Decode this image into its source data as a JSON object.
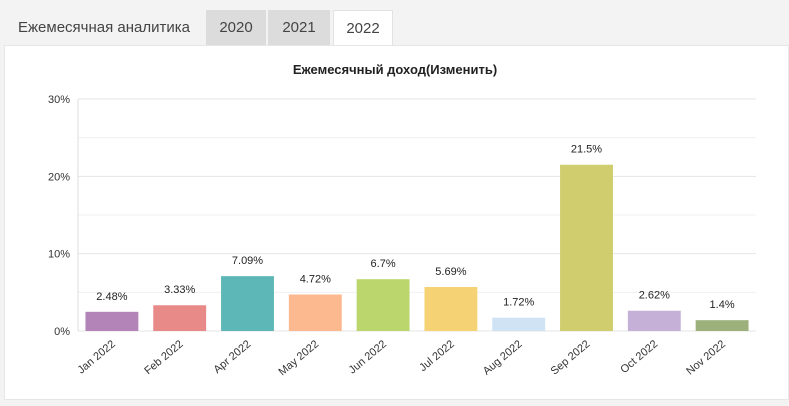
{
  "tabs": {
    "title": "Ежемесячная аналитика",
    "items": [
      {
        "label": "2020",
        "active": false
      },
      {
        "label": "2021",
        "active": false
      },
      {
        "label": "2022",
        "active": true
      }
    ]
  },
  "chart_data": {
    "type": "bar",
    "title": "Ежемесячный доход(Изменить)",
    "xlabel": "",
    "ylabel": "",
    "ylim": [
      0,
      30
    ],
    "yticks": [
      "0%",
      "10%",
      "20%",
      "30%"
    ],
    "categories": [
      "Jan 2022",
      "Feb 2022",
      "Apr 2022",
      "May 2022",
      "Jun 2022",
      "Jul 2022",
      "Aug 2022",
      "Sep 2022",
      "Oct 2022",
      "Nov 2022"
    ],
    "values": [
      2.48,
      3.33,
      7.09,
      4.72,
      6.7,
      5.69,
      1.72,
      21.5,
      2.62,
      1.4
    ],
    "data_labels": [
      "2.48%",
      "3.33%",
      "7.09%",
      "4.72%",
      "6.7%",
      "5.69%",
      "1.72%",
      "21.5%",
      "2.62%",
      "1.4%"
    ],
    "colors": [
      "#b284b7",
      "#e78a88",
      "#5db7b6",
      "#fcb88f",
      "#bcd66e",
      "#f5d273",
      "#cfe3f5",
      "#d0cd6e",
      "#c5b1d7",
      "#9cb07c"
    ],
    "grid": true,
    "legend": "none"
  }
}
